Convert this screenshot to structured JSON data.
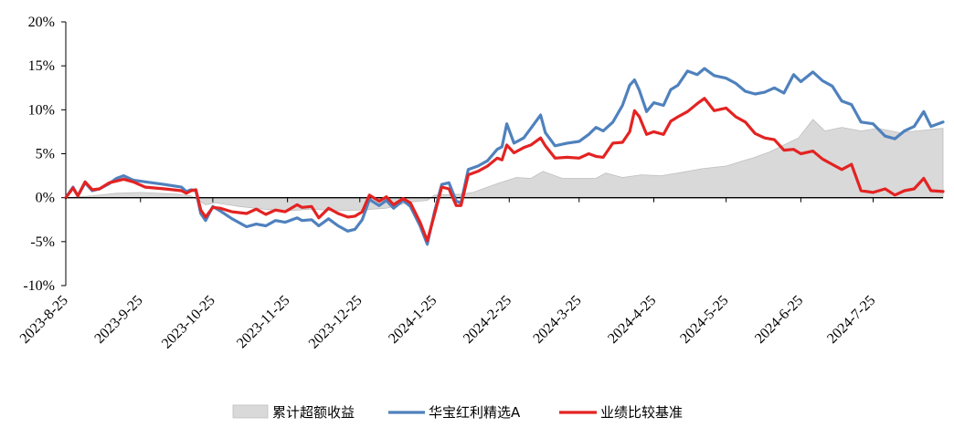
{
  "chart_data": {
    "type": "line",
    "title": "",
    "xlabel": "",
    "ylabel": "",
    "ylim": [
      -10,
      20
    ],
    "yticks": [
      -10,
      -5,
      0,
      5,
      10,
      15,
      20
    ],
    "ytick_labels": [
      "-10%",
      "-5%",
      "0%",
      "5%",
      "10%",
      "15%",
      "20%"
    ],
    "xlim": [
      "2023-08-25",
      "2024-08-23"
    ],
    "xtick_dates": [
      "2023-08-25",
      "2023-09-25",
      "2023-10-25",
      "2023-11-25",
      "2023-12-25",
      "2024-01-25",
      "2024-02-25",
      "2024-03-25",
      "2024-04-25",
      "2024-05-25",
      "2024-06-25",
      "2024-07-25"
    ],
    "xtick_labels": [
      "2023-8-25",
      "2023-9-25",
      "2023-10-25",
      "2023-11-25",
      "2023-12-25",
      "2024-1-25",
      "2024-2-25",
      "2024-3-25",
      "2024-4-25",
      "2024-5-25",
      "2024-6-25",
      "2024-7-25"
    ],
    "grid": false,
    "legend_position": "bottom",
    "colors": {
      "excess": "#d9d9d9",
      "excess_edge": "#bfbfbf",
      "fund": "#4f81bd",
      "benchmark": "#e32322"
    },
    "series": [
      {
        "name": "累计超额收益",
        "kind": "area",
        "points": [
          [
            "2023-08-25",
            0.0
          ],
          [
            "2023-09-05",
            0.2
          ],
          [
            "2023-09-15",
            0.5
          ],
          [
            "2023-09-25",
            0.6
          ],
          [
            "2023-10-10",
            0.4
          ],
          [
            "2023-10-16",
            0.2
          ],
          [
            "2023-10-22",
            -0.8
          ],
          [
            "2023-10-26",
            -0.6
          ],
          [
            "2023-11-05",
            -1.0
          ],
          [
            "2023-11-15",
            -1.3
          ],
          [
            "2023-11-25",
            -1.5
          ],
          [
            "2023-12-05",
            -1.3
          ],
          [
            "2023-12-15",
            -1.5
          ],
          [
            "2023-12-25",
            -1.4
          ],
          [
            "2024-01-05",
            -1.2
          ],
          [
            "2024-01-15",
            -0.5
          ],
          [
            "2024-01-22",
            -0.3
          ],
          [
            "2024-01-25",
            0.3
          ],
          [
            "2024-02-05",
            0.4
          ],
          [
            "2024-02-10",
            0.6
          ],
          [
            "2024-02-20",
            1.6
          ],
          [
            "2024-02-28",
            2.3
          ],
          [
            "2024-03-05",
            2.2
          ],
          [
            "2024-03-10",
            3.0
          ],
          [
            "2024-03-18",
            2.2
          ],
          [
            "2024-03-25",
            2.2
          ],
          [
            "2024-04-01",
            2.2
          ],
          [
            "2024-04-05",
            2.8
          ],
          [
            "2024-04-12",
            2.3
          ],
          [
            "2024-04-20",
            2.6
          ],
          [
            "2024-04-28",
            2.5
          ],
          [
            "2024-05-05",
            2.8
          ],
          [
            "2024-05-15",
            3.3
          ],
          [
            "2024-05-25",
            3.6
          ],
          [
            "2024-06-01",
            4.2
          ],
          [
            "2024-06-05",
            4.5
          ],
          [
            "2024-06-12",
            5.2
          ],
          [
            "2024-06-18",
            6.0
          ],
          [
            "2024-06-24",
            6.8
          ],
          [
            "2024-06-30",
            8.9
          ],
          [
            "2024-07-05",
            7.6
          ],
          [
            "2024-07-12",
            8.0
          ],
          [
            "2024-07-20",
            7.6
          ],
          [
            "2024-07-27",
            7.9
          ],
          [
            "2024-08-05",
            7.4
          ],
          [
            "2024-08-12",
            7.6
          ],
          [
            "2024-08-23",
            7.9
          ]
        ]
      },
      {
        "name": "华宝红利精选A",
        "kind": "line",
        "points": [
          [
            "2023-08-25",
            0.0
          ],
          [
            "2023-08-28",
            1.2
          ],
          [
            "2023-08-30",
            0.2
          ],
          [
            "2023-09-02",
            1.7
          ],
          [
            "2023-09-05",
            0.8
          ],
          [
            "2023-09-08",
            1.0
          ],
          [
            "2023-09-12",
            1.6
          ],
          [
            "2023-09-15",
            2.2
          ],
          [
            "2023-09-18",
            2.5
          ],
          [
            "2023-09-22",
            2.0
          ],
          [
            "2023-09-27",
            1.8
          ],
          [
            "2023-10-05",
            1.5
          ],
          [
            "2023-10-12",
            1.2
          ],
          [
            "2023-10-14",
            0.7
          ],
          [
            "2023-10-16",
            0.9
          ],
          [
            "2023-10-18",
            0.8
          ],
          [
            "2023-10-20",
            -1.8
          ],
          [
            "2023-10-22",
            -2.6
          ],
          [
            "2023-10-25",
            -1.0
          ],
          [
            "2023-10-28",
            -1.5
          ],
          [
            "2023-11-02",
            -2.4
          ],
          [
            "2023-11-08",
            -3.3
          ],
          [
            "2023-11-12",
            -3.0
          ],
          [
            "2023-11-16",
            -3.2
          ],
          [
            "2023-11-20",
            -2.6
          ],
          [
            "2023-11-24",
            -2.8
          ],
          [
            "2023-11-29",
            -2.3
          ],
          [
            "2023-12-01",
            -2.6
          ],
          [
            "2023-12-05",
            -2.5
          ],
          [
            "2023-12-08",
            -3.2
          ],
          [
            "2023-12-12",
            -2.4
          ],
          [
            "2023-12-16",
            -3.2
          ],
          [
            "2023-12-20",
            -3.8
          ],
          [
            "2023-12-23",
            -3.6
          ],
          [
            "2023-12-26",
            -2.5
          ],
          [
            "2023-12-29",
            -0.2
          ],
          [
            "2024-01-02",
            -0.9
          ],
          [
            "2024-01-05",
            -0.3
          ],
          [
            "2024-01-08",
            -1.2
          ],
          [
            "2024-01-12",
            -0.3
          ],
          [
            "2024-01-15",
            -1.0
          ],
          [
            "2024-01-19",
            -3.2
          ],
          [
            "2024-01-22",
            -5.3
          ],
          [
            "2024-01-25",
            -1.6
          ],
          [
            "2024-01-28",
            1.5
          ],
          [
            "2024-01-31",
            1.7
          ],
          [
            "2024-02-03",
            -0.4
          ],
          [
            "2024-02-05",
            -0.6
          ],
          [
            "2024-02-08",
            3.2
          ],
          [
            "2024-02-12",
            3.6
          ],
          [
            "2024-02-16",
            4.2
          ],
          [
            "2024-02-20",
            5.5
          ],
          [
            "2024-02-22",
            5.8
          ],
          [
            "2024-02-24",
            8.4
          ],
          [
            "2024-02-27",
            6.2
          ],
          [
            "2024-03-02",
            6.8
          ],
          [
            "2024-03-05",
            7.9
          ],
          [
            "2024-03-09",
            9.4
          ],
          [
            "2024-03-11",
            7.4
          ],
          [
            "2024-03-15",
            5.9
          ],
          [
            "2024-03-20",
            6.2
          ],
          [
            "2024-03-25",
            6.4
          ],
          [
            "2024-03-29",
            7.2
          ],
          [
            "2024-04-01",
            8.0
          ],
          [
            "2024-04-04",
            7.6
          ],
          [
            "2024-04-08",
            8.6
          ],
          [
            "2024-04-12",
            10.5
          ],
          [
            "2024-04-15",
            12.8
          ],
          [
            "2024-04-17",
            13.4
          ],
          [
            "2024-04-19",
            12.2
          ],
          [
            "2024-04-22",
            9.8
          ],
          [
            "2024-04-25",
            10.8
          ],
          [
            "2024-04-29",
            10.5
          ],
          [
            "2024-05-02",
            12.3
          ],
          [
            "2024-05-05",
            12.8
          ],
          [
            "2024-05-09",
            14.4
          ],
          [
            "2024-05-13",
            14.0
          ],
          [
            "2024-05-16",
            14.7
          ],
          [
            "2024-05-20",
            13.9
          ],
          [
            "2024-05-25",
            13.6
          ],
          [
            "2024-05-29",
            13.0
          ],
          [
            "2024-06-02",
            12.1
          ],
          [
            "2024-06-06",
            11.8
          ],
          [
            "2024-06-10",
            12.0
          ],
          [
            "2024-06-14",
            12.5
          ],
          [
            "2024-06-18",
            11.9
          ],
          [
            "2024-06-22",
            14.0
          ],
          [
            "2024-06-25",
            13.2
          ],
          [
            "2024-06-30",
            14.3
          ],
          [
            "2024-07-04",
            13.3
          ],
          [
            "2024-07-08",
            12.7
          ],
          [
            "2024-07-12",
            11.0
          ],
          [
            "2024-07-16",
            10.6
          ],
          [
            "2024-07-20",
            8.6
          ],
          [
            "2024-07-25",
            8.4
          ],
          [
            "2024-07-30",
            7.0
          ],
          [
            "2024-08-03",
            6.7
          ],
          [
            "2024-08-07",
            7.6
          ],
          [
            "2024-08-11",
            8.1
          ],
          [
            "2024-08-15",
            9.8
          ],
          [
            "2024-08-18",
            8.1
          ],
          [
            "2024-08-23",
            8.6
          ]
        ]
      },
      {
        "name": "业绩比较基准",
        "kind": "line",
        "points": [
          [
            "2023-08-25",
            0.0
          ],
          [
            "2023-08-28",
            1.1
          ],
          [
            "2023-08-30",
            0.2
          ],
          [
            "2023-09-02",
            1.8
          ],
          [
            "2023-09-05",
            0.9
          ],
          [
            "2023-09-08",
            1.0
          ],
          [
            "2023-09-12",
            1.7
          ],
          [
            "2023-09-15",
            1.9
          ],
          [
            "2023-09-18",
            2.1
          ],
          [
            "2023-09-22",
            1.8
          ],
          [
            "2023-09-27",
            1.2
          ],
          [
            "2023-10-05",
            1.0
          ],
          [
            "2023-10-12",
            0.8
          ],
          [
            "2023-10-14",
            0.5
          ],
          [
            "2023-10-16",
            0.8
          ],
          [
            "2023-10-18",
            0.9
          ],
          [
            "2023-10-20",
            -1.4
          ],
          [
            "2023-10-22",
            -2.2
          ],
          [
            "2023-10-25",
            -1.1
          ],
          [
            "2023-10-28",
            -1.2
          ],
          [
            "2023-11-02",
            -1.6
          ],
          [
            "2023-11-08",
            -1.8
          ],
          [
            "2023-11-12",
            -1.3
          ],
          [
            "2023-11-16",
            -1.9
          ],
          [
            "2023-11-20",
            -1.4
          ],
          [
            "2023-11-24",
            -1.6
          ],
          [
            "2023-11-29",
            -0.8
          ],
          [
            "2023-12-01",
            -1.1
          ],
          [
            "2023-12-05",
            -1.0
          ],
          [
            "2023-12-08",
            -2.3
          ],
          [
            "2023-12-12",
            -1.2
          ],
          [
            "2023-12-16",
            -1.8
          ],
          [
            "2023-12-20",
            -2.2
          ],
          [
            "2023-12-23",
            -2.1
          ],
          [
            "2023-12-26",
            -1.6
          ],
          [
            "2023-12-29",
            0.3
          ],
          [
            "2024-01-02",
            -0.4
          ],
          [
            "2024-01-05",
            0.1
          ],
          [
            "2024-01-08",
            -0.8
          ],
          [
            "2024-01-12",
            -0.1
          ],
          [
            "2024-01-15",
            -0.6
          ],
          [
            "2024-01-19",
            -2.8
          ],
          [
            "2024-01-22",
            -4.9
          ],
          [
            "2024-01-25",
            -1.9
          ],
          [
            "2024-01-28",
            1.2
          ],
          [
            "2024-01-31",
            1.0
          ],
          [
            "2024-02-03",
            -0.9
          ],
          [
            "2024-02-05",
            -0.9
          ],
          [
            "2024-02-08",
            2.6
          ],
          [
            "2024-02-12",
            3.0
          ],
          [
            "2024-02-16",
            3.6
          ],
          [
            "2024-02-20",
            4.5
          ],
          [
            "2024-02-22",
            4.3
          ],
          [
            "2024-02-24",
            6.0
          ],
          [
            "2024-02-27",
            5.1
          ],
          [
            "2024-03-02",
            5.7
          ],
          [
            "2024-03-05",
            6.0
          ],
          [
            "2024-03-09",
            6.8
          ],
          [
            "2024-03-11",
            5.9
          ],
          [
            "2024-03-15",
            4.5
          ],
          [
            "2024-03-20",
            4.6
          ],
          [
            "2024-03-25",
            4.5
          ],
          [
            "2024-03-29",
            5.0
          ],
          [
            "2024-04-01",
            4.7
          ],
          [
            "2024-04-04",
            4.6
          ],
          [
            "2024-04-08",
            6.2
          ],
          [
            "2024-04-12",
            6.3
          ],
          [
            "2024-04-15",
            7.5
          ],
          [
            "2024-04-17",
            9.9
          ],
          [
            "2024-04-19",
            9.2
          ],
          [
            "2024-04-22",
            7.2
          ],
          [
            "2024-04-25",
            7.5
          ],
          [
            "2024-04-29",
            7.2
          ],
          [
            "2024-05-02",
            8.7
          ],
          [
            "2024-05-05",
            9.2
          ],
          [
            "2024-05-09",
            9.8
          ],
          [
            "2024-05-13",
            10.7
          ],
          [
            "2024-05-16",
            11.3
          ],
          [
            "2024-05-20",
            9.9
          ],
          [
            "2024-05-25",
            10.2
          ],
          [
            "2024-05-29",
            9.2
          ],
          [
            "2024-06-02",
            8.6
          ],
          [
            "2024-06-06",
            7.3
          ],
          [
            "2024-06-10",
            6.8
          ],
          [
            "2024-06-14",
            6.6
          ],
          [
            "2024-06-18",
            5.4
          ],
          [
            "2024-06-22",
            5.5
          ],
          [
            "2024-06-25",
            5.0
          ],
          [
            "2024-06-30",
            5.3
          ],
          [
            "2024-07-04",
            4.4
          ],
          [
            "2024-07-08",
            3.8
          ],
          [
            "2024-07-12",
            3.2
          ],
          [
            "2024-07-16",
            3.8
          ],
          [
            "2024-07-20",
            0.8
          ],
          [
            "2024-07-25",
            0.6
          ],
          [
            "2024-07-30",
            1.0
          ],
          [
            "2024-08-03",
            0.3
          ],
          [
            "2024-08-07",
            0.8
          ],
          [
            "2024-08-11",
            1.0
          ],
          [
            "2024-08-15",
            2.2
          ],
          [
            "2024-08-18",
            0.8
          ],
          [
            "2024-08-23",
            0.7
          ]
        ]
      }
    ]
  }
}
